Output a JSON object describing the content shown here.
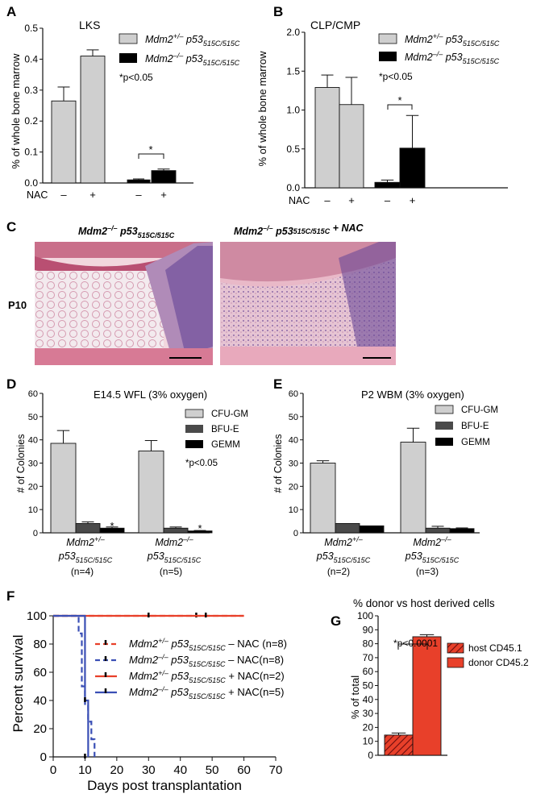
{
  "colors": {
    "light_gray": "#cfcfcf",
    "dark_gray": "#4a4a4a",
    "black": "#000000",
    "red": "#e8402a",
    "blue": "#3a4fb5",
    "hatch": "#c0392b",
    "histo_pink": "#d98a9a"
  },
  "panels": {
    "A": {
      "letter": "A",
      "title": "LKS",
      "ylabel": "% of whole bone marrow",
      "nac_label": "NAC",
      "treat": [
        "–",
        "+",
        "–",
        "+"
      ],
      "sig_text": "*p<0.05",
      "star": "*",
      "legend": [
        {
          "pre": "Mdm2",
          "pre_sup": "+/–",
          "mid": " p53",
          "mid_sup": "515C/515C"
        },
        {
          "pre": "Mdm2",
          "pre_sup": "–/–",
          "mid": " p53",
          "mid_sup": "515C/515C"
        }
      ],
      "yticks": [
        "0.0",
        "0.1",
        "0.2",
        "0.3",
        "0.4",
        "0.5"
      ]
    },
    "B": {
      "letter": "B",
      "title": "CLP/CMP",
      "ylabel": "% of whole bone marrow",
      "nac_label": "NAC",
      "treat": [
        "–",
        "+",
        "–",
        "+"
      ],
      "sig_text": "*p<0.05",
      "star": "*",
      "legend": [
        {
          "pre": "Mdm2",
          "pre_sup": "+/–",
          "mid": " p53",
          "mid_sup": "515C/515C"
        },
        {
          "pre": "Mdm2",
          "pre_sup": "–/–",
          "mid": " p53",
          "mid_sup": "515C/515C"
        }
      ],
      "yticks": [
        "0.0",
        "0.5",
        "1.0",
        "1.5",
        "2.0"
      ]
    },
    "C": {
      "letter": "C",
      "row_label": "P10",
      "titles": [
        {
          "pre": "Mdm2",
          "pre_sup": "–/–",
          "mid": " p53",
          "mid_sup": "515C/515C",
          "post": ""
        },
        {
          "pre": "Mdm2",
          "pre_sup": "–/–",
          "mid": " p53",
          "mid_sup": "515C/515C",
          "post": " + NAC"
        }
      ]
    },
    "D": {
      "letter": "D",
      "title": "E14.5 WFL (3% oxygen)",
      "ylabel": "# of Colonies",
      "legend": [
        "CFU-GM",
        "BFU-E",
        "GEMM"
      ],
      "sig_text": "*p<0.05",
      "star": "*",
      "groups": [
        {
          "g1": "Mdm2",
          "g1_sup": "+/–",
          "g2": "p53",
          "g2_sup": "515C/515C",
          "n": "(n=4)"
        },
        {
          "g1": "Mdm2",
          "g1_sup": "–/–",
          "g2": "p53",
          "g2_sup": "515C/515C",
          "n": "(n=5)"
        }
      ],
      "yticks": [
        "0",
        "10",
        "20",
        "30",
        "40",
        "50",
        "60"
      ]
    },
    "E": {
      "letter": "E",
      "title": "P2 WBM (3% oxygen)",
      "ylabel": "# of Colonies",
      "legend": [
        "CFU-GM",
        "BFU-E",
        "GEMM"
      ],
      "groups": [
        {
          "g1": "Mdm2",
          "g1_sup": "+/–",
          "g2": "p53",
          "g2_sup": "515C/515C",
          "n": "(n=2)"
        },
        {
          "g1": "Mdm2",
          "g1_sup": "–/–",
          "g2": "p53",
          "g2_sup": "515C/515C",
          "n": "(n=3)"
        }
      ],
      "yticks": [
        "0",
        "10",
        "20",
        "30",
        "40",
        "50",
        "60"
      ]
    },
    "F": {
      "letter": "F",
      "ylabel": "Percent survival",
      "xlabel": "Days post transplantation",
      "yticks": [
        "0",
        "20",
        "40",
        "60",
        "80",
        "100"
      ],
      "xticks": [
        "0",
        "10",
        "20",
        "30",
        "40",
        "50",
        "60",
        "70"
      ],
      "legend": [
        {
          "pre": "Mdm2",
          "pre_sup": "+/–",
          "mid": " p53",
          "mid_sup": "515C/515C",
          "post": " – NAC (n=8)"
        },
        {
          "pre": "Mdm2",
          "pre_sup": "–/–",
          "mid": " p53",
          "mid_sup": "515C/515C",
          "post": " – NAC(n=8)"
        },
        {
          "pre": "Mdm2",
          "pre_sup": "+/–",
          "mid": " p53",
          "mid_sup": "515C/515C",
          "post": " + NAC(n=2)"
        },
        {
          "pre": "Mdm2",
          "pre_sup": "–/–",
          "mid": " p53",
          "mid_sup": "515C/515C",
          "post": " + NAC(n=5)"
        }
      ]
    },
    "G": {
      "letter": "G",
      "title": "% donor vs host derived cells",
      "ylabel": "% of total",
      "sig_text": "*p<0.0001",
      "legend": [
        "host CD45.1",
        "donor CD45.2"
      ],
      "yticks": [
        "0",
        "10",
        "20",
        "30",
        "40",
        "50",
        "60",
        "70",
        "80",
        "90",
        "100"
      ]
    }
  },
  "chart_data": [
    {
      "panel": "A",
      "type": "bar",
      "categories": [
        "Mdm2+/– –NAC",
        "Mdm2+/– +NAC",
        "Mdm2–/– –NAC",
        "Mdm2–/– +NAC"
      ],
      "values": [
        0.265,
        0.41,
        0.01,
        0.04
      ],
      "errors": [
        0.045,
        0.02,
        0.003,
        0.005
      ],
      "ylim": [
        0,
        0.5
      ]
    },
    {
      "panel": "B",
      "type": "bar",
      "categories": [
        "Mdm2+/– –NAC",
        "Mdm2+/– +NAC",
        "Mdm2–/– –NAC",
        "Mdm2–/– +NAC"
      ],
      "values": [
        1.29,
        1.07,
        0.07,
        0.51
      ],
      "errors": [
        0.16,
        0.35,
        0.03,
        0.42
      ],
      "ylim": [
        0,
        2.0
      ]
    },
    {
      "panel": "D",
      "type": "bar",
      "categories": [
        "Mdm2+/– p53 515C/515C",
        "Mdm2–/– p53 515C/515C"
      ],
      "series": [
        {
          "name": "CFU-GM",
          "values": [
            38.5,
            35.2
          ],
          "errors": [
            5.5,
            4.5
          ]
        },
        {
          "name": "BFU-E",
          "values": [
            4.0,
            2.0
          ],
          "errors": [
            0.7,
            0.5
          ]
        },
        {
          "name": "GEMM",
          "values": [
            2.0,
            0.8
          ],
          "errors": [
            0.5,
            0.2
          ]
        }
      ],
      "ylim": [
        0,
        60
      ]
    },
    {
      "panel": "E",
      "type": "bar",
      "categories": [
        "Mdm2+/– p53 515C/515C",
        "Mdm2–/– p53 515C/515C"
      ],
      "series": [
        {
          "name": "CFU-GM",
          "values": [
            30.0,
            39.0
          ],
          "errors": [
            1.0,
            6.0
          ]
        },
        {
          "name": "BFU-E",
          "values": [
            4.0,
            2.0
          ],
          "errors": [
            0,
            0.8
          ]
        },
        {
          "name": "GEMM",
          "values": [
            3.0,
            1.8
          ],
          "errors": [
            0,
            0.3
          ]
        }
      ],
      "ylim": [
        0,
        60
      ]
    },
    {
      "panel": "F",
      "type": "line",
      "xlim": [
        0,
        70
      ],
      "ylim": [
        0,
        100
      ],
      "series": [
        {
          "name": "Mdm2+/– p53 515C/515C – NAC (n=8)",
          "style": "dashed",
          "color": "#e8402a",
          "points": [
            [
              0,
              100
            ],
            [
              60,
              100
            ]
          ],
          "censor": [
            [
              45,
              100
            ],
            [
              48,
              100
            ]
          ]
        },
        {
          "name": "Mdm2–/– p53 515C/515C – NAC(n=8)",
          "style": "dashed",
          "color": "#3a4fb5",
          "points": [
            [
              0,
              100
            ],
            [
              8,
              100
            ],
            [
              8,
              87.5
            ],
            [
              9,
              87.5
            ],
            [
              9,
              50
            ],
            [
              10,
              50
            ],
            [
              10,
              37.5
            ],
            [
              11,
              37.5
            ],
            [
              11,
              25
            ],
            [
              12,
              25
            ],
            [
              12,
              12.5
            ],
            [
              13,
              12.5
            ],
            [
              13,
              0
            ]
          ],
          "censor": []
        },
        {
          "name": "Mdm2+/– p53 515C/515C + NAC(n=2)",
          "style": "solid",
          "color": "#e8402a",
          "points": [
            [
              0,
              100
            ],
            [
              60,
              100
            ]
          ],
          "censor": [
            [
              30,
              100
            ],
            [
              48,
              100
            ]
          ]
        },
        {
          "name": "Mdm2–/– p53 515C/515C + NAC(n=5)",
          "style": "solid",
          "color": "#3a4fb5",
          "points": [
            [
              0,
              100
            ],
            [
              10,
              100
            ],
            [
              10,
              40
            ],
            [
              11,
              40
            ],
            [
              11,
              0
            ]
          ],
          "censor": [
            [
              10,
              40
            ],
            [
              10,
              0
            ]
          ]
        }
      ]
    },
    {
      "panel": "G",
      "type": "bar",
      "categories": [
        "host CD45.1",
        "donor CD45.2"
      ],
      "values": [
        14.5,
        85
      ],
      "errors": [
        1.5,
        1.5
      ],
      "ylim": [
        0,
        100
      ]
    }
  ]
}
